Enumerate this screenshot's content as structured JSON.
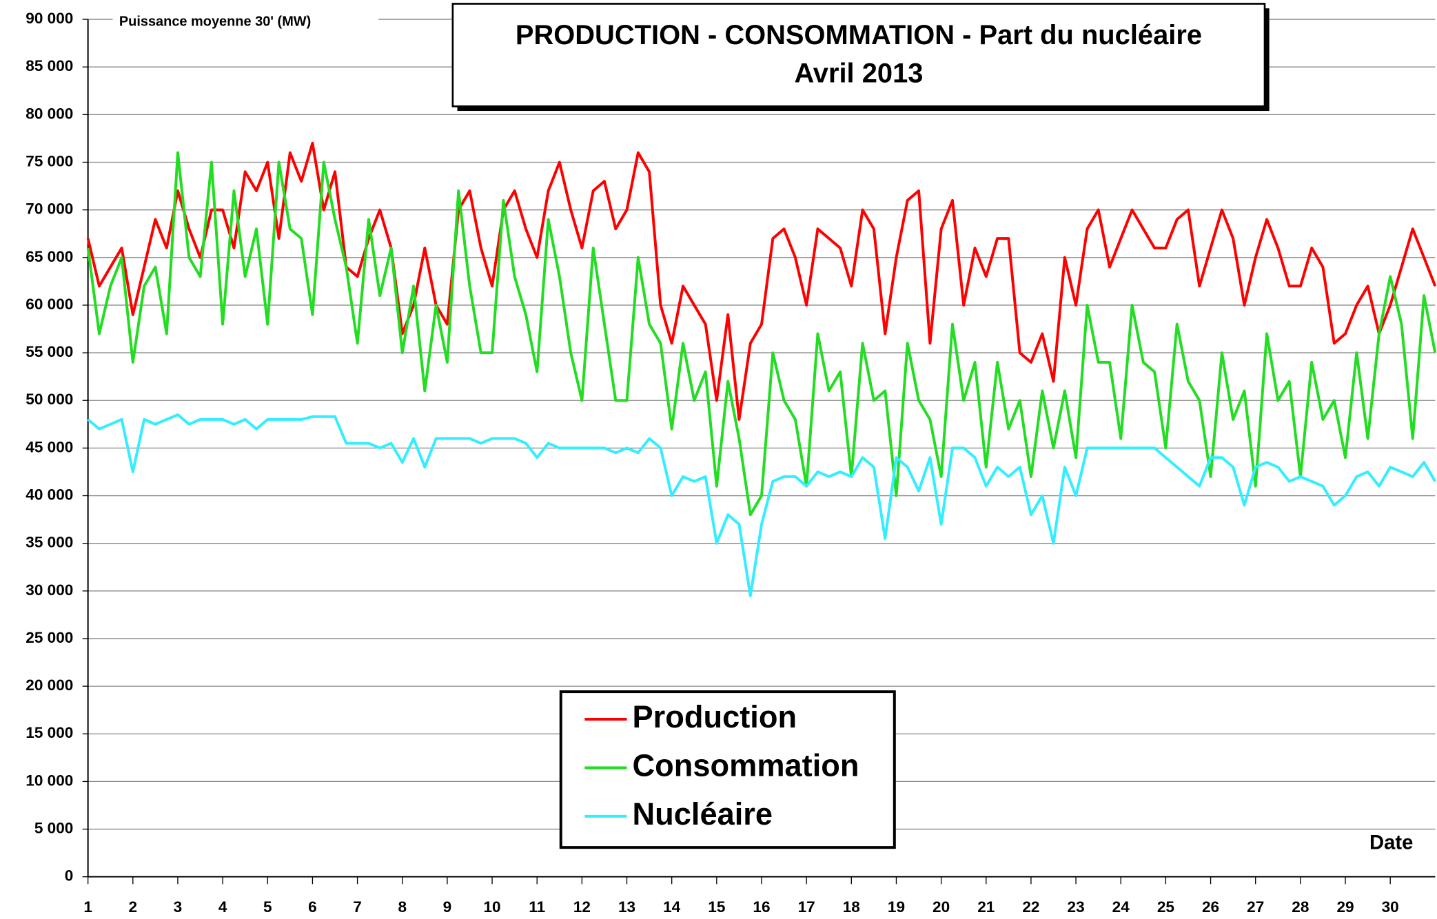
{
  "chart_data": {
    "type": "line",
    "title": "PRODUCTION - CONSOMMATION - Part du nucléaire",
    "subtitle": "Avril  2013",
    "y_axis_label": "Puissance moyenne 30' (MW)",
    "x_axis_label": "Date",
    "grid": true,
    "legend": "bottom",
    "xlim": [
      1,
      31
    ],
    "xticks": [
      1,
      2,
      3,
      4,
      5,
      6,
      7,
      8,
      9,
      10,
      11,
      12,
      13,
      14,
      15,
      16,
      17,
      18,
      19,
      20,
      21,
      22,
      23,
      24,
      25,
      26,
      27,
      28,
      29,
      30
    ],
    "ylim": [
      0,
      90000
    ],
    "yticks": [
      0,
      {
        "value": 5000,
        "label": "5 000"
      },
      {
        "value": 10000,
        "label": "10 000"
      },
      {
        "value": 15000,
        "label": "15 000"
      },
      {
        "value": 20000,
        "label": "20 000"
      },
      {
        "value": 25000,
        "label": "25 000"
      },
      {
        "value": 30000,
        "label": "30 000"
      },
      {
        "value": 35000,
        "label": "35 000"
      },
      {
        "value": 40000,
        "label": "40 000"
      },
      {
        "value": 45000,
        "label": "45 000"
      },
      {
        "value": 50000,
        "label": "50 000"
      },
      {
        "value": 55000,
        "label": "55 000"
      },
      {
        "value": 60000,
        "label": "60 000"
      },
      {
        "value": 65000,
        "label": "65 000"
      },
      {
        "value": 70000,
        "label": "70 000"
      },
      {
        "value": 75000,
        "label": "75 000"
      },
      {
        "value": 80000,
        "label": "80 000"
      },
      {
        "value": 85000,
        "label": "85 000"
      },
      {
        "value": 90000,
        "label": "90 000"
      }
    ],
    "x": [
      1,
      1.25,
      1.5,
      1.75,
      2,
      2.25,
      2.5,
      2.75,
      3,
      3.25,
      3.5,
      3.75,
      4,
      4.25,
      4.5,
      4.75,
      5,
      5.25,
      5.5,
      5.75,
      6,
      6.25,
      6.5,
      6.75,
      7,
      7.25,
      7.5,
      7.75,
      8,
      8.25,
      8.5,
      8.75,
      9,
      9.25,
      9.5,
      9.75,
      10,
      10.25,
      10.5,
      10.75,
      11,
      11.25,
      11.5,
      11.75,
      12,
      12.25,
      12.5,
      12.75,
      13,
      13.25,
      13.5,
      13.75,
      14,
      14.25,
      14.5,
      14.75,
      15,
      15.25,
      15.5,
      15.75,
      16,
      16.25,
      16.5,
      16.75,
      17,
      17.25,
      17.5,
      17.75,
      18,
      18.25,
      18.5,
      18.75,
      19,
      19.25,
      19.5,
      19.75,
      20,
      20.25,
      20.5,
      20.75,
      21,
      21.25,
      21.5,
      21.75,
      22,
      22.25,
      22.5,
      22.75,
      23,
      23.25,
      23.5,
      23.75,
      24,
      24.25,
      24.5,
      24.75,
      25,
      25.25,
      25.5,
      25.75,
      26,
      26.25,
      26.5,
      26.75,
      27,
      27.25,
      27.5,
      27.75,
      28,
      28.25,
      28.5,
      28.75,
      29,
      29.25,
      29.5,
      29.75,
      30,
      30.25,
      30.5,
      30.75,
      31
    ],
    "series": [
      {
        "name": "Production",
        "color": "#ff0000",
        "values": [
          67000,
          62000,
          64000,
          66000,
          59000,
          64000,
          69000,
          66000,
          72000,
          68000,
          65000,
          70000,
          70000,
          66000,
          74000,
          72000,
          75000,
          67000,
          76000,
          73000,
          77000,
          70000,
          74000,
          64000,
          63000,
          67000,
          70000,
          66000,
          57000,
          60000,
          66000,
          60000,
          58000,
          70000,
          72000,
          66000,
          62000,
          70000,
          72000,
          68000,
          65000,
          72000,
          75000,
          70000,
          66000,
          72000,
          73000,
          68000,
          70000,
          76000,
          74000,
          60000,
          56000,
          62000,
          60000,
          58000,
          50000,
          59000,
          48000,
          56000,
          58000,
          67000,
          68000,
          65000,
          60000,
          68000,
          67000,
          66000,
          62000,
          70000,
          68000,
          57000,
          65000,
          71000,
          72000,
          56000,
          68000,
          71000,
          60000,
          66000,
          63000,
          67000,
          67000,
          55000,
          54000,
          57000,
          52000,
          65000,
          60000,
          68000,
          70000,
          64000,
          67000,
          70000,
          68000,
          66000,
          66000,
          69000,
          70000,
          62000,
          66000,
          70000,
          67000,
          60000,
          65000,
          69000,
          66000,
          62000,
          62000,
          66000,
          64000,
          56000,
          57000,
          60000,
          62000,
          57000,
          60000,
          64000,
          68000,
          65000,
          62000
        ]
      },
      {
        "name": "Consommation",
        "color": "#22dd22",
        "values": [
          66000,
          57000,
          62000,
          65000,
          54000,
          62000,
          64000,
          57000,
          76000,
          65000,
          63000,
          75000,
          58000,
          72000,
          63000,
          68000,
          58000,
          75000,
          68000,
          67000,
          59000,
          75000,
          69000,
          64000,
          56000,
          69000,
          61000,
          66000,
          55000,
          62000,
          51000,
          60000,
          54000,
          72000,
          62000,
          55000,
          55000,
          71000,
          63000,
          59000,
          53000,
          69000,
          63000,
          55000,
          50000,
          66000,
          58000,
          50000,
          50000,
          65000,
          58000,
          56000,
          47000,
          56000,
          50000,
          53000,
          41000,
          52000,
          46000,
          38000,
          40000,
          55000,
          50000,
          48000,
          41000,
          57000,
          51000,
          53000,
          42000,
          56000,
          50000,
          51000,
          40000,
          56000,
          50000,
          48000,
          42000,
          58000,
          50000,
          54000,
          43000,
          54000,
          47000,
          50000,
          42000,
          51000,
          45000,
          51000,
          44000,
          60000,
          54000,
          54000,
          46000,
          60000,
          54000,
          53000,
          45000,
          58000,
          52000,
          50000,
          42000,
          55000,
          48000,
          51000,
          41000,
          57000,
          50000,
          52000,
          42000,
          54000,
          48000,
          50000,
          44000,
          55000,
          46000,
          57000,
          63000,
          58000,
          46000,
          61000,
          55000
        ]
      },
      {
        "name": "Nucléaire",
        "color": "#33eeff",
        "values": [
          48000,
          47000,
          47500,
          48000,
          42500,
          48000,
          47500,
          48000,
          48500,
          47500,
          48000,
          48000,
          48000,
          47500,
          48000,
          47000,
          48000,
          48000,
          48000,
          48000,
          48300,
          48300,
          48300,
          45500,
          45500,
          45500,
          45000,
          45500,
          43500,
          46000,
          43000,
          46000,
          46000,
          46000,
          46000,
          45500,
          46000,
          46000,
          46000,
          45500,
          44000,
          45500,
          45000,
          45000,
          45000,
          45000,
          45000,
          44500,
          45000,
          44500,
          46000,
          45000,
          40000,
          42000,
          41500,
          42000,
          35000,
          38000,
          37000,
          29500,
          37000,
          41500,
          42000,
          42000,
          41000,
          42500,
          42000,
          42500,
          42000,
          44000,
          43000,
          35500,
          44000,
          43000,
          40500,
          44000,
          37000,
          45000,
          45000,
          44000,
          41000,
          43000,
          42000,
          43000,
          38000,
          40000,
          35000,
          43000,
          40000,
          45000,
          45000,
          45000,
          45000,
          45000,
          45000,
          45000,
          44000,
          43000,
          42000,
          41000,
          44000,
          44000,
          43000,
          39000,
          43000,
          43500,
          43000,
          41500,
          42000,
          41500,
          41000,
          39000,
          40000,
          42000,
          42500,
          41000,
          43000,
          42500,
          42000,
          43500,
          41500
        ]
      }
    ]
  }
}
